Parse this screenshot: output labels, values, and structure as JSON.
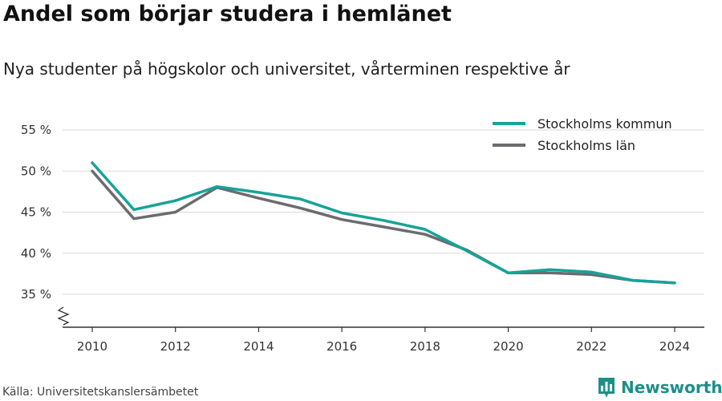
{
  "header": {
    "title": "Andel som börjar studera i hemlänet",
    "subtitle": "Nya studenter på högskolor och universitet, vårterminen respektive år"
  },
  "footer": {
    "source": "Källa: Universitetskanslersämbetet",
    "brand": "Newsworthy",
    "brand_icon": "bar-chart-icon"
  },
  "colors": {
    "stockholms_kommun": "#17a398",
    "stockholms_lan": "#6b6b70",
    "brand": "#1d8f8a"
  },
  "chart_data": {
    "type": "line",
    "title": "Andel som börjar studera i hemlänet",
    "subtitle": "Nya studenter på högskolor och universitet, vårterminen respektive år",
    "x": [
      2010,
      2011,
      2012,
      2013,
      2014,
      2015,
      2016,
      2017,
      2018,
      2019,
      2020,
      2021,
      2022,
      2023,
      2024
    ],
    "x_ticks": [
      2010,
      2012,
      2014,
      2016,
      2018,
      2020,
      2022,
      2024
    ],
    "x_tick_labels": [
      "2010",
      "2012",
      "2014",
      "2016",
      "2018",
      "2020",
      "2022",
      "2024"
    ],
    "y_ticks": [
      35,
      40,
      45,
      50,
      55
    ],
    "y_tick_labels": [
      "35 %",
      "40 %",
      "45 %",
      "50 %",
      "55 %"
    ],
    "ylim": [
      31,
      56
    ],
    "y_axis_break": true,
    "grid": "horizontal",
    "legend_position": "top-right",
    "series": [
      {
        "name": "Stockholms kommun",
        "color": "#17a398",
        "values": [
          51.0,
          45.3,
          46.4,
          48.1,
          47.4,
          46.6,
          44.9,
          44.0,
          42.9,
          40.3,
          37.6,
          38.0,
          37.7,
          36.7,
          36.4
        ]
      },
      {
        "name": "Stockholms län",
        "color": "#6b6b70",
        "values": [
          50.0,
          44.2,
          45.0,
          48.0,
          46.7,
          45.5,
          44.1,
          43.2,
          42.3,
          40.4,
          37.6,
          37.6,
          37.4,
          36.7,
          36.4
        ]
      }
    ]
  }
}
